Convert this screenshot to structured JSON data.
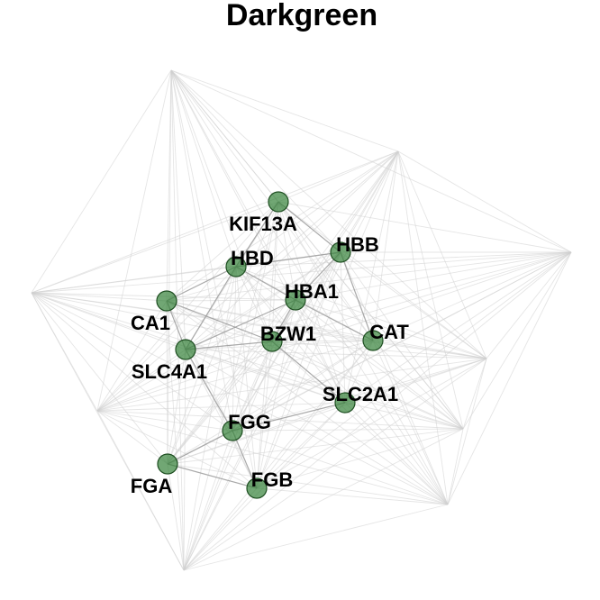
{
  "title": "Darkgreen",
  "nodes": [
    {
      "id": "KIF13A",
      "label": "KIF13A"
    },
    {
      "id": "HBB",
      "label": "HBB"
    },
    {
      "id": "HBD",
      "label": "HBD"
    },
    {
      "id": "HBA1",
      "label": "HBA1"
    },
    {
      "id": "CA1",
      "label": "CA1"
    },
    {
      "id": "BZW1",
      "label": "BZW1"
    },
    {
      "id": "CAT",
      "label": "CAT"
    },
    {
      "id": "SLC4A1",
      "label": "SLC4A1"
    },
    {
      "id": "SLC2A1",
      "label": "SLC2A1"
    },
    {
      "id": "FGG",
      "label": "FGG"
    },
    {
      "id": "FGA",
      "label": "FGA"
    },
    {
      "id": "FGB",
      "label": "FGB"
    }
  ],
  "edges": [
    [
      "KIF13A",
      "HBB"
    ],
    [
      "KIF13A",
      "HBD"
    ],
    [
      "HBB",
      "HBD"
    ],
    [
      "HBB",
      "HBA1"
    ],
    [
      "HBD",
      "HBA1"
    ],
    [
      "HBD",
      "CA1"
    ],
    [
      "HBD",
      "SLC4A1"
    ],
    [
      "HBA1",
      "BZW1"
    ],
    [
      "HBA1",
      "CAT"
    ],
    [
      "CA1",
      "SLC4A1"
    ],
    [
      "CA1",
      "BZW1"
    ],
    [
      "SLC4A1",
      "BZW1"
    ],
    [
      "SLC4A1",
      "FGG"
    ],
    [
      "BZW1",
      "SLC2A1"
    ],
    [
      "SLC2A1",
      "FGG"
    ],
    [
      "FGG",
      "FGA"
    ],
    [
      "FGG",
      "FGB"
    ],
    [
      "FGA",
      "FGB"
    ],
    [
      "HBB",
      "CAT"
    ],
    [
      "HBA1",
      "SLC4A1"
    ]
  ]
}
